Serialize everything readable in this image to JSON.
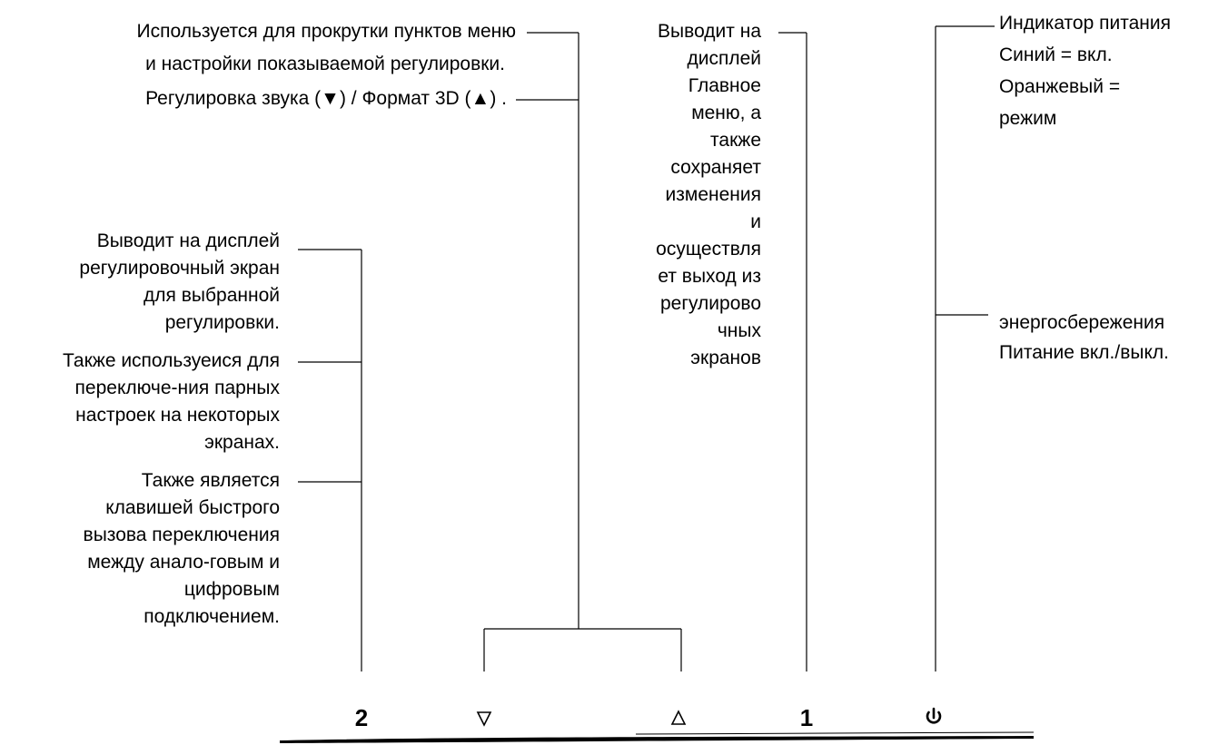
{
  "callouts": {
    "scroll_line1": "Используется для прокрутки пунктов меню",
    "scroll_line2": "и настройки показываемой регулировки.",
    "sound_format": "Регулировка звука (▼) / Формат 3D  (▲) .",
    "menu": "Выводит на\nдисплей\nГлавное\nменю, а\nтакже\nсохраняет\nизменения\nи\nосуществля\nет выход из\nрегулирово\nчных\nэкранов",
    "power_indicator": "Индикатор питания\nСиний = вкл.\nОранжевый =\nрежим",
    "power_saving": "энергосбережения\nПитание вкл./выкл.",
    "adjust_screen": "Выводит на дисплей\nрегулировочный экран\nдля выбранной\nрегулировки.",
    "toggle_pairs": "Также используеися для\nпереключе-ния парных\nнастроек на некоторых\nэкранах.",
    "hotkey": "Также является\nклавишей быстрого\nвызова переключения\nмежду анало-говым и\nцифровым\nподключением."
  },
  "buttons": {
    "button_2": "2",
    "down_icon": "triangle-down-icon",
    "up_icon": "triangle-up-icon",
    "button_1": "1",
    "power_icon": "power-icon"
  }
}
